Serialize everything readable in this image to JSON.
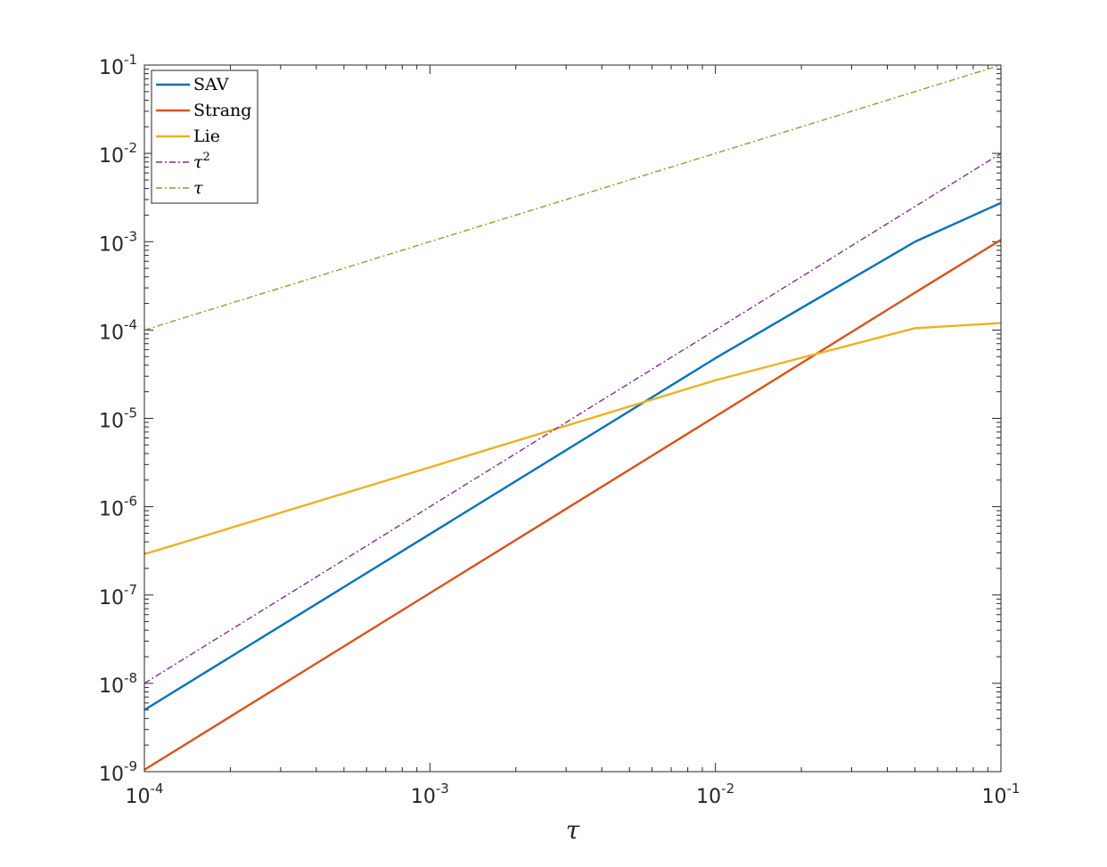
{
  "chart_data": {
    "type": "line",
    "title": "",
    "xlabel": "τ",
    "ylabel": "",
    "xscale": "log",
    "yscale": "log",
    "xlim": [
      0.0001,
      0.1
    ],
    "ylim": [
      1e-09,
      0.1
    ],
    "grid": false,
    "legend_position": "top-left",
    "x_ticks": [
      {
        "base": "10",
        "exp": "-4"
      },
      {
        "base": "10",
        "exp": "-3"
      },
      {
        "base": "10",
        "exp": "-2"
      },
      {
        "base": "10",
        "exp": "-1"
      }
    ],
    "y_ticks": [
      {
        "base": "10",
        "exp": "-9"
      },
      {
        "base": "10",
        "exp": "-8"
      },
      {
        "base": "10",
        "exp": "-7"
      },
      {
        "base": "10",
        "exp": "-6"
      },
      {
        "base": "10",
        "exp": "-5"
      },
      {
        "base": "10",
        "exp": "-4"
      },
      {
        "base": "10",
        "exp": "-3"
      },
      {
        "base": "10",
        "exp": "-2"
      },
      {
        "base": "10",
        "exp": "-1"
      }
    ],
    "series": [
      {
        "name": "SAV",
        "name_base": "SAV",
        "name_exp": "",
        "color": "#0072BD",
        "style": "solid",
        "x": [
          0.0001,
          0.01,
          0.05,
          0.1
        ],
        "y": [
          5e-09,
          4.8e-05,
          0.001,
          0.00275
        ]
      },
      {
        "name": "Strang",
        "name_base": "Strang",
        "name_exp": "",
        "color": "#D95319",
        "style": "solid",
        "x": [
          0.0001,
          0.01,
          0.05,
          0.1
        ],
        "y": [
          1.05e-09,
          1.05e-05,
          0.000265,
          0.00105
        ]
      },
      {
        "name": "Lie",
        "name_base": "Lie",
        "name_exp": "",
        "color": "#EDB120",
        "style": "solid",
        "x": [
          0.0001,
          0.01,
          0.05,
          0.1
        ],
        "y": [
          2.9e-07,
          2.7e-05,
          0.000105,
          0.00012
        ]
      },
      {
        "name": "τ^2",
        "name_base": "τ",
        "name_exp": "2",
        "color": "#7E2F8E",
        "style": "dashdot",
        "x": [
          0.0001,
          0.1
        ],
        "y": [
          1e-08,
          0.01
        ]
      },
      {
        "name": "τ",
        "name_base": "τ",
        "name_exp": "",
        "color": "#77AC30",
        "style": "dashdot",
        "x": [
          0.0001,
          0.1
        ],
        "y": [
          0.0001,
          0.1
        ]
      }
    ]
  }
}
